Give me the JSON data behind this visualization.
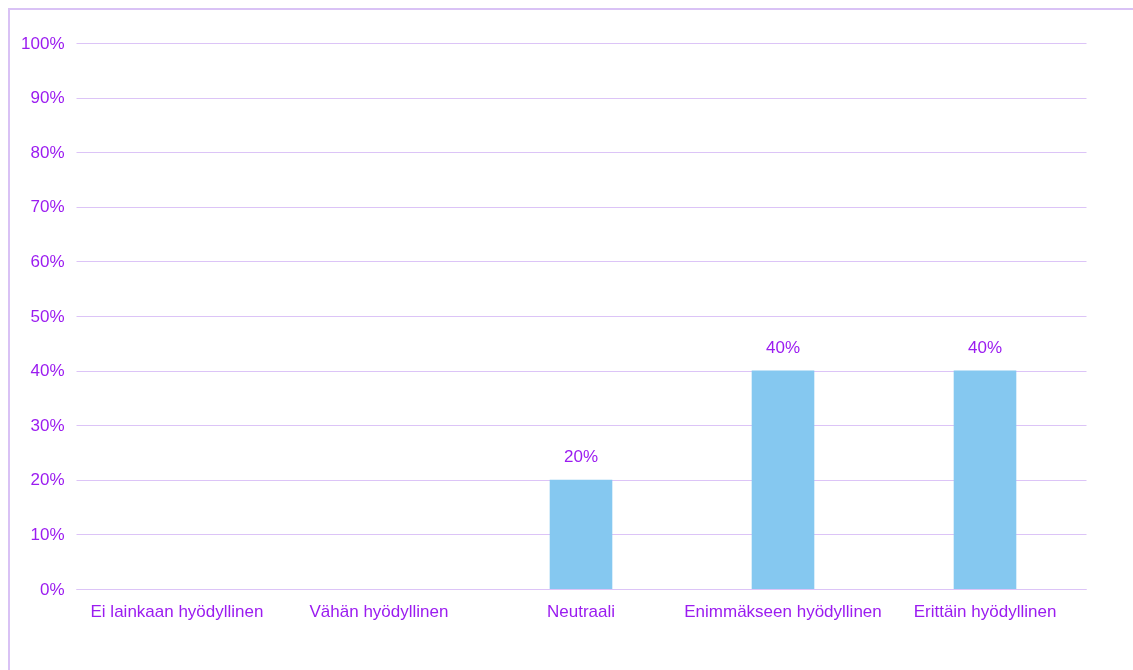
{
  "chart_data": {
    "type": "bar",
    "categories": [
      "Ei lainkaan hyödyllinen",
      "Vähän hyödyllinen",
      "Neutraali",
      "Enimmäkseen hyödyllinen",
      "Erittäin hyödyllinen"
    ],
    "values": [
      0,
      0,
      20,
      40,
      40
    ],
    "color": "#85c8f0",
    "value_labels": [
      null,
      null,
      "20%",
      "40%",
      "40%"
    ],
    "ylim": [
      0,
      100
    ],
    "yticks": [
      {
        "value": 0,
        "label": "0%"
      },
      {
        "value": 10,
        "label": "10%"
      },
      {
        "value": 20,
        "label": "20%"
      },
      {
        "value": 30,
        "label": "30%"
      },
      {
        "value": 40,
        "label": "40%"
      },
      {
        "value": 50,
        "label": "50%"
      },
      {
        "value": 60,
        "label": "60%"
      },
      {
        "value": 70,
        "label": "70%"
      },
      {
        "value": 80,
        "label": "80%"
      },
      {
        "value": 90,
        "label": "90%"
      },
      {
        "value": 100,
        "label": "100%"
      }
    ],
    "grid": "y"
  }
}
